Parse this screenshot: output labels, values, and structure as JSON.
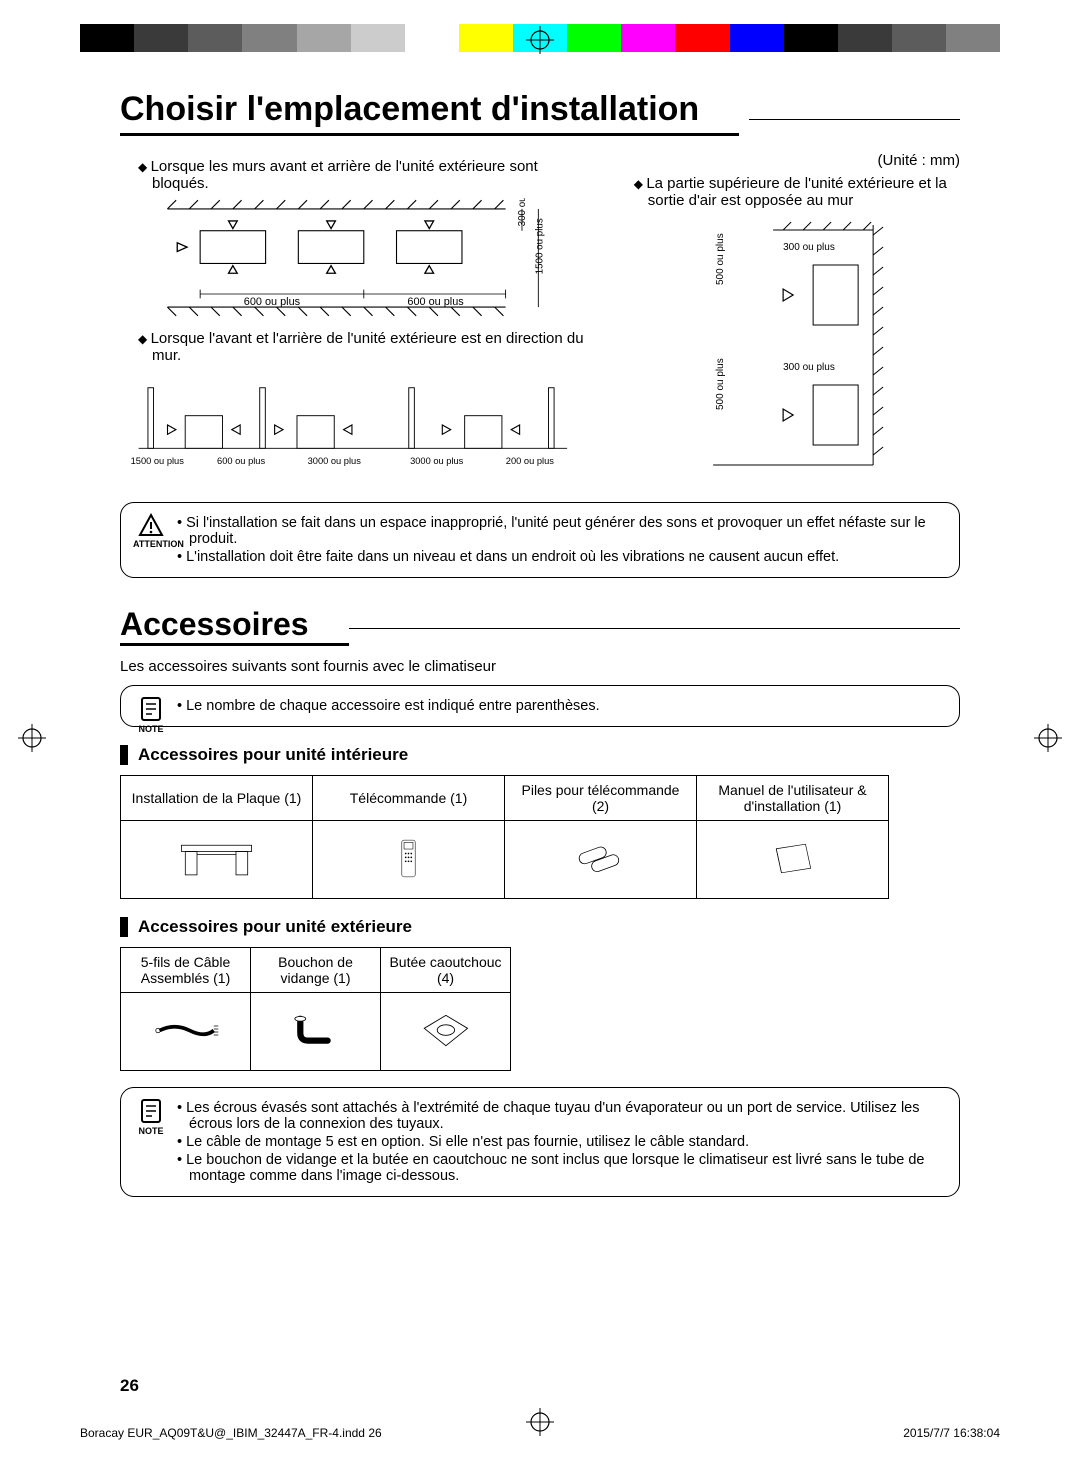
{
  "color_bar": [
    "#000000",
    "#3a3a3a",
    "#5c5c5c",
    "#808080",
    "#a6a6a6",
    "#cccccc",
    "#ffffff",
    "#ffff00",
    "#00ffff",
    "#00ff00",
    "#ff00ff",
    "#ff0000",
    "#0000ff",
    "#000000",
    "#3a3a3a",
    "#5c5c5c",
    "#808080"
  ],
  "heading1": "Choisir l'emplacement d'installation",
  "unit_label": "(Unité : mm)",
  "left": {
    "bullet1": "Lorsque les murs avant et arrière de l'unité extérieure sont bloqués.",
    "diagram1_labels": [
      "600 ou plus",
      "600 ou plus",
      "300 ou plus",
      "1500 ou plus"
    ],
    "bullet2": "Lorsque l'avant et l'arrière de l'unité extérieure est en direction du mur.",
    "diagram2_labels": [
      "1500 ou plus",
      "600 ou plus",
      "3000 ou plus",
      "3000 ou plus",
      "200 ou plus"
    ]
  },
  "right": {
    "bullet": "La partie supérieure de l'unité extérieure et la sortie d'air est opposée au mur",
    "diagram_labels": [
      "500 ou plus",
      "300 ou plus",
      "500 ou plus",
      "300 ou plus"
    ]
  },
  "attention": {
    "label": "ATTENTION",
    "items": [
      "Si l'installation se fait dans un espace inapproprié, l'unité peut générer des sons et provoquer un effet néfaste sur le produit.",
      "L'installation doit être faite dans un niveau et dans un endroit où les vibrations ne causent aucun effet."
    ]
  },
  "heading2": "Accessoires",
  "acc_intro": "Les accessoires suivants sont fournis avec le climatiseur",
  "note1": {
    "label": "NOTE",
    "items": [
      "Le nombre de chaque accessoire est indiqué entre parenthèses."
    ]
  },
  "indoor": {
    "title": "Accessoires pour unité intérieure",
    "cols": [
      "Installation de la Plaque (1)",
      "Télécommande (1)",
      "Piles pour télécommande (2)",
      "Manuel de l'utilisateur & d'installation (1)"
    ]
  },
  "outdoor": {
    "title": "Accessoires pour unité extérieure",
    "cols": [
      "5-fils de Câble Assemblés (1)",
      "Bouchon de vidange (1)",
      "Butée caoutchouc (4)"
    ]
  },
  "note2": {
    "label": "NOTE",
    "items": [
      "Les écrous évasés sont attachés à l'extrémité de chaque tuyau d'un évaporateur ou un port de service. Utilisez les écrous lors de la connexion des tuyaux.",
      "Le câble de montage 5 est en option. Si elle n'est pas fournie, utilisez le câble standard.",
      "Le bouchon de vidange et la butée en caoutchouc ne sont inclus que lorsque le climatiseur est livré sans le tube de montage comme dans l'image ci-dessous."
    ]
  },
  "page_number": "26",
  "footer_left": "Boracay EUR_AQ09T&U@_IBIM_32447A_FR-4.indd   26",
  "footer_right": "2015/7/7   16:38:04"
}
